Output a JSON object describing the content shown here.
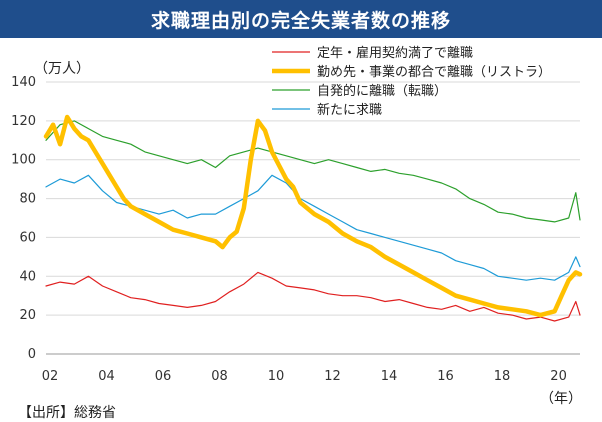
{
  "title": "求職理由別の完全失業者数の推移",
  "unit_label": "（万人）",
  "x_unit_label": "（年）",
  "source": "【出所】総務省",
  "chart_data": {
    "type": "line",
    "title": "求職理由別の完全失業者数の推移",
    "ylabel": "（万人）",
    "xlabel": "（年）",
    "ylim": [
      0,
      140
    ],
    "xlim": [
      2002,
      2020.9
    ],
    "y_ticks": [
      0,
      20,
      40,
      60,
      80,
      100,
      120,
      140
    ],
    "x_ticks": [
      {
        "value": 2002,
        "label": "02"
      },
      {
        "value": 2004,
        "label": "04"
      },
      {
        "value": 2006,
        "label": "06"
      },
      {
        "value": 2008,
        "label": "08"
      },
      {
        "value": 2010,
        "label": "10"
      },
      {
        "value": 2012,
        "label": "12"
      },
      {
        "value": 2014,
        "label": "14"
      },
      {
        "value": 2016,
        "label": "16"
      },
      {
        "value": 2018,
        "label": "18"
      },
      {
        "value": 2020,
        "label": "20"
      }
    ],
    "grid": "horizontal",
    "legend_position": "top-right",
    "series": [
      {
        "name": "定年・雇用契約満了で離職",
        "color": "#e02020",
        "width": 1.2,
        "x": [
          2002.0,
          2002.5,
          2003.0,
          2003.5,
          2004.0,
          2004.5,
          2005.0,
          2005.5,
          2006.0,
          2006.5,
          2007.0,
          2007.5,
          2008.0,
          2008.5,
          2009.0,
          2009.5,
          2010.0,
          2010.5,
          2011.0,
          2011.5,
          2012.0,
          2012.5,
          2013.0,
          2013.5,
          2014.0,
          2014.5,
          2015.0,
          2015.5,
          2016.0,
          2016.5,
          2017.0,
          2017.5,
          2018.0,
          2018.5,
          2019.0,
          2019.5,
          2020.0,
          2020.5,
          2020.75,
          2020.9
        ],
        "y": [
          35,
          37,
          36,
          40,
          35,
          32,
          29,
          28,
          26,
          25,
          24,
          25,
          27,
          32,
          36,
          42,
          39,
          35,
          34,
          33,
          31,
          30,
          30,
          29,
          27,
          28,
          26,
          24,
          23,
          25,
          22,
          24,
          21,
          20,
          18,
          19,
          17,
          19,
          27,
          20
        ]
      },
      {
        "name": "勤め先・事業の都合で離職（リストラ）",
        "color": "#ffc000",
        "width": 4.5,
        "x": [
          2002.0,
          2002.25,
          2002.5,
          2002.75,
          2003.0,
          2003.25,
          2003.5,
          2003.75,
          2004.0,
          2004.25,
          2004.5,
          2004.75,
          2005.0,
          2005.5,
          2006.0,
          2006.5,
          2007.0,
          2007.5,
          2008.0,
          2008.25,
          2008.5,
          2008.75,
          2009.0,
          2009.25,
          2009.5,
          2009.75,
          2010.0,
          2010.25,
          2010.5,
          2010.75,
          2011.0,
          2011.5,
          2012.0,
          2012.5,
          2013.0,
          2013.5,
          2014.0,
          2014.5,
          2015.0,
          2015.5,
          2016.0,
          2016.5,
          2017.0,
          2017.5,
          2018.0,
          2018.5,
          2019.0,
          2019.5,
          2020.0,
          2020.25,
          2020.5,
          2020.75,
          2020.9
        ],
        "y": [
          112,
          118,
          108,
          122,
          116,
          112,
          110,
          104,
          98,
          92,
          86,
          80,
          76,
          72,
          68,
          64,
          62,
          60,
          58,
          55,
          60,
          63,
          75,
          100,
          120,
          115,
          104,
          97,
          90,
          86,
          78,
          72,
          68,
          62,
          58,
          55,
          50,
          46,
          42,
          38,
          34,
          30,
          28,
          26,
          24,
          23,
          22,
          20,
          22,
          30,
          38,
          42,
          41
        ]
      },
      {
        "name": "自発的に離職（転職）",
        "color": "#2ca02c",
        "width": 1.2,
        "x": [
          2002.0,
          2002.5,
          2003.0,
          2003.5,
          2004.0,
          2004.5,
          2005.0,
          2005.5,
          2006.0,
          2006.5,
          2007.0,
          2007.5,
          2008.0,
          2008.5,
          2009.0,
          2009.5,
          2010.0,
          2010.5,
          2011.0,
          2011.5,
          2012.0,
          2012.5,
          2013.0,
          2013.5,
          2014.0,
          2014.5,
          2015.0,
          2015.5,
          2016.0,
          2016.5,
          2017.0,
          2017.5,
          2018.0,
          2018.5,
          2019.0,
          2019.5,
          2020.0,
          2020.5,
          2020.75,
          2020.9
        ],
        "y": [
          110,
          118,
          120,
          116,
          112,
          110,
          108,
          104,
          102,
          100,
          98,
          100,
          96,
          102,
          104,
          106,
          104,
          102,
          100,
          98,
          100,
          98,
          96,
          94,
          95,
          93,
          92,
          90,
          88,
          85,
          80,
          77,
          73,
          72,
          70,
          69,
          68,
          70,
          83,
          69
        ]
      },
      {
        "name": "新たに求職",
        "color": "#1e9bd7",
        "width": 1.2,
        "x": [
          2002.0,
          2002.5,
          2003.0,
          2003.5,
          2004.0,
          2004.5,
          2005.0,
          2005.5,
          2006.0,
          2006.5,
          2007.0,
          2007.5,
          2008.0,
          2008.5,
          2009.0,
          2009.5,
          2010.0,
          2010.5,
          2011.0,
          2011.5,
          2012.0,
          2012.5,
          2013.0,
          2013.5,
          2014.0,
          2014.5,
          2015.0,
          2015.5,
          2016.0,
          2016.5,
          2017.0,
          2017.5,
          2018.0,
          2018.5,
          2019.0,
          2019.5,
          2020.0,
          2020.5,
          2020.75,
          2020.9
        ],
        "y": [
          86,
          90,
          88,
          92,
          84,
          78,
          76,
          74,
          72,
          74,
          70,
          72,
          72,
          76,
          80,
          84,
          92,
          88,
          80,
          76,
          72,
          68,
          64,
          62,
          60,
          58,
          56,
          54,
          52,
          48,
          46,
          44,
          40,
          39,
          38,
          39,
          38,
          42,
          50,
          45
        ]
      }
    ]
  }
}
